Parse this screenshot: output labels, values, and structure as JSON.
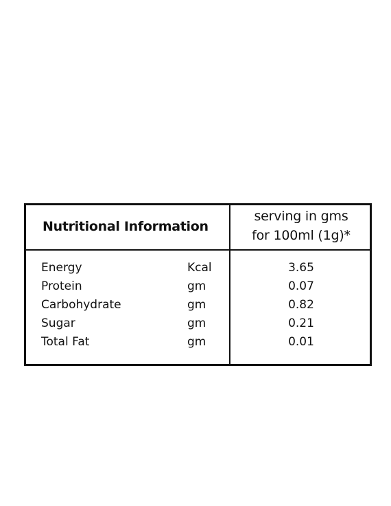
{
  "table": {
    "header": {
      "title": "Nutritional Information",
      "serving_line1": "serving in gms",
      "serving_line2": "for 100ml (1g)*"
    },
    "rows": [
      {
        "nutrient": "Energy",
        "unit": "Kcal",
        "value": "3.65"
      },
      {
        "nutrient": "Protein",
        "unit": "gm",
        "value": "0.07"
      },
      {
        "nutrient": "Carbohydrate",
        "unit": "gm",
        "value": "0.82"
      },
      {
        "nutrient": "Sugar",
        "unit": "gm",
        "value": "0.21"
      },
      {
        "nutrient": "Total Fat",
        "unit": "gm",
        "value": "0.01"
      }
    ]
  }
}
